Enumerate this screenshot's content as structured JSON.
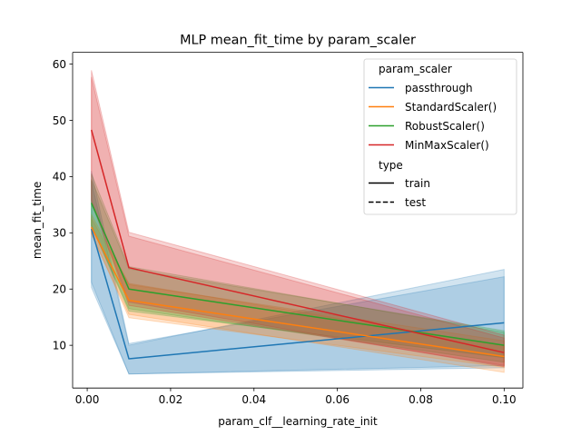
{
  "chart_data": {
    "type": "line",
    "title": "MLP mean_fit_time by param_scaler",
    "xlabel": "param_clf__learning_rate_init",
    "ylabel": "mean_fit_time",
    "xlim": [
      -0.0035,
      0.1045
    ],
    "ylim": [
      2.4,
      62.1
    ],
    "x_ticks": [
      0.0,
      0.02,
      0.04,
      0.06,
      0.08,
      0.1
    ],
    "x_tick_labels": [
      "0.00",
      "0.02",
      "0.04",
      "0.06",
      "0.08",
      "0.10"
    ],
    "y_ticks": [
      10,
      20,
      30,
      40,
      50,
      60
    ],
    "y_tick_labels": [
      "10",
      "20",
      "30",
      "40",
      "50",
      "60"
    ],
    "grid": false,
    "legend": {
      "placement": "top-right",
      "hue_title": "param_scaler",
      "style_title": "type",
      "style_entries": [
        {
          "label": "train",
          "dash": "solid"
        },
        {
          "label": "test",
          "dash": "dashed"
        }
      ]
    },
    "x": [
      0.001,
      0.01,
      0.1
    ],
    "series": [
      {
        "name": "passthrough",
        "color": "#1f77b4",
        "values": [
          30.7,
          7.6,
          14.0
        ],
        "bands": [
          {
            "lower": [
              21.2,
              4.9,
              6.0
            ],
            "upper": [
              41.0,
              10.3,
              22.2
            ]
          },
          {
            "lower": [
              20.3,
              4.9,
              6.4
            ],
            "upper": [
              39.2,
              10.0,
              23.5
            ]
          }
        ]
      },
      {
        "name": "StandardScaler()",
        "color": "#ff7f0e",
        "values": [
          31.0,
          18.0,
          8.0
        ],
        "bands": [
          {
            "lower": [
              29.7,
              15.5,
              5.2
            ],
            "upper": [
              32.6,
              20.8,
              10.8
            ]
          },
          {
            "lower": [
              29.9,
              14.9,
              6.1
            ],
            "upper": [
              33.3,
              21.0,
              9.9
            ]
          }
        ]
      },
      {
        "name": "RobustScaler()",
        "color": "#2ca02c",
        "values": [
          35.3,
          20.0,
          10.0
        ],
        "bands": [
          {
            "lower": [
              31.3,
              16.5,
              7.0
            ],
            "upper": [
              39.5,
              23.6,
              12.6
            ]
          },
          {
            "lower": [
              31.2,
              16.1,
              7.8
            ],
            "upper": [
              40.5,
              24.0,
              12.3
            ]
          }
        ]
      },
      {
        "name": "MinMaxScaler()",
        "color": "#d62728",
        "values": [
          48.3,
          23.8,
          8.7
        ],
        "bands": [
          {
            "lower": [
              35.8,
              17.7,
              6.2
            ],
            "upper": [
              58.9,
              30.1,
              11.8
            ]
          },
          {
            "lower": [
              35.5,
              17.1,
              6.4
            ],
            "upper": [
              57.7,
              29.4,
              11.3
            ]
          }
        ]
      }
    ]
  }
}
